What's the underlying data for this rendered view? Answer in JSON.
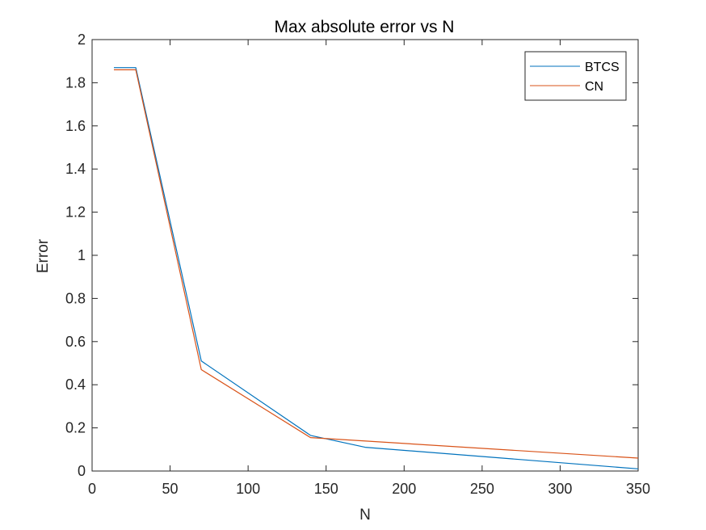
{
  "chart_data": {
    "type": "line",
    "title": "Max absolute error vs N",
    "xlabel": "N",
    "ylabel": "Error",
    "xlim": [
      0,
      350
    ],
    "ylim": [
      0,
      2
    ],
    "xticks": [
      0,
      50,
      100,
      150,
      200,
      250,
      300,
      350
    ],
    "yticks": [
      0,
      0.2,
      0.4,
      0.6,
      0.8,
      1,
      1.2,
      1.4,
      1.6,
      1.8,
      2
    ],
    "xtick_labels": [
      "0",
      "50",
      "100",
      "150",
      "200",
      "250",
      "300",
      "350"
    ],
    "ytick_labels": [
      "0",
      "0.2",
      "0.4",
      "0.6",
      "0.8",
      "1",
      "1.2",
      "1.4",
      "1.6",
      "1.8",
      "2"
    ],
    "grid": false,
    "legend_position": "top-right",
    "series": [
      {
        "name": "BTCS",
        "color": "#0072BD",
        "x": [
          14,
          28,
          70,
          140,
          175,
          350
        ],
        "y": [
          1.87,
          1.87,
          0.51,
          0.165,
          0.11,
          0.01
        ]
      },
      {
        "name": "CN",
        "color": "#D95319",
        "x": [
          14,
          28,
          70,
          140,
          350
        ],
        "y": [
          1.86,
          1.86,
          0.47,
          0.155,
          0.06
        ]
      }
    ]
  }
}
